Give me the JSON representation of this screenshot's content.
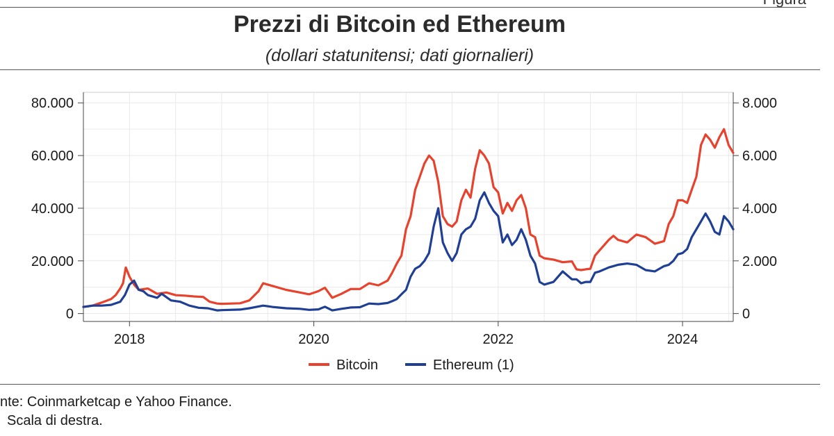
{
  "header": {
    "corner_tag": "Figura",
    "title": "Prezzi di Bitcoin ed Ethereum",
    "subtitle": "(dollari statunitensi; dati giornalieri)"
  },
  "footer": {
    "source": "nte: Coinmarketcap e Yahoo Finance.",
    "note": "Scala di destra."
  },
  "chart_data": {
    "type": "line",
    "title": "Prezzi di Bitcoin ed Ethereum",
    "subtitle": "(dollari statunitensi; dati giornalieri)",
    "x_unit": "year",
    "xlim": [
      2017.5,
      2024.55
    ],
    "x_ticks": [
      2018,
      2020,
      2022,
      2024
    ],
    "x_tick_labels": [
      "2018",
      "2020",
      "2022",
      "2024"
    ],
    "y_left": {
      "lim": [
        -3000,
        84000
      ],
      "ticks": [
        0,
        20000,
        40000,
        60000,
        80000
      ],
      "tick_labels": [
        "0",
        "20.000",
        "40.000",
        "60.000",
        "80.000"
      ]
    },
    "y_right": {
      "lim": [
        -300,
        8400
      ],
      "ticks": [
        0,
        2000,
        4000,
        6000,
        8000
      ],
      "tick_labels": [
        "0",
        "2.000",
        "4.000",
        "6.000",
        "8.000"
      ]
    },
    "grid": true,
    "legend_position": "bottom-center",
    "series": [
      {
        "name": "Bitcoin",
        "axis": "left",
        "color": "#e8412c",
        "x": [
          2017.5,
          2017.6,
          2017.7,
          2017.8,
          2017.85,
          2017.9,
          2017.93,
          2017.96,
          2018.0,
          2018.05,
          2018.1,
          2018.2,
          2018.3,
          2018.4,
          2018.5,
          2018.6,
          2018.7,
          2018.8,
          2018.87,
          2018.95,
          2019.0,
          2019.2,
          2019.3,
          2019.4,
          2019.45,
          2019.55,
          2019.7,
          2019.85,
          2019.95,
          2020.05,
          2020.12,
          2020.2,
          2020.3,
          2020.4,
          2020.5,
          2020.6,
          2020.7,
          2020.8,
          2020.85,
          2020.9,
          2020.95,
          2021.0,
          2021.05,
          2021.1,
          2021.15,
          2021.2,
          2021.25,
          2021.3,
          2021.35,
          2021.4,
          2021.45,
          2021.5,
          2021.55,
          2021.6,
          2021.65,
          2021.7,
          2021.75,
          2021.8,
          2021.85,
          2021.9,
          2021.95,
          2022.0,
          2022.05,
          2022.1,
          2022.15,
          2022.2,
          2022.25,
          2022.3,
          2022.35,
          2022.4,
          2022.45,
          2022.5,
          2022.6,
          2022.7,
          2022.8,
          2022.85,
          2022.9,
          2022.95,
          2023.0,
          2023.05,
          2023.1,
          2023.2,
          2023.25,
          2023.3,
          2023.4,
          2023.5,
          2023.6,
          2023.7,
          2023.8,
          2023.85,
          2023.9,
          2023.95,
          2024.0,
          2024.05,
          2024.1,
          2024.15,
          2024.2,
          2024.25,
          2024.3,
          2024.35,
          2024.4,
          2024.45,
          2024.5,
          2024.55
        ],
        "values": [
          2500,
          3000,
          4200,
          5500,
          7000,
          9500,
          11500,
          17500,
          14000,
          11000,
          9000,
          9500,
          7500,
          8000,
          7000,
          6800,
          6500,
          6300,
          4500,
          3800,
          3700,
          3900,
          5000,
          8500,
          11500,
          10500,
          9000,
          8000,
          7300,
          8500,
          9800,
          6000,
          7500,
          9300,
          9300,
          11500,
          10700,
          12500,
          15500,
          19000,
          22000,
          32000,
          37000,
          47000,
          52000,
          57000,
          60000,
          58000,
          50000,
          37000,
          34000,
          33000,
          35000,
          43000,
          47000,
          44000,
          55000,
          62000,
          60000,
          57000,
          48000,
          46000,
          38000,
          42000,
          39000,
          43000,
          45000,
          40000,
          30000,
          29000,
          22000,
          21000,
          20500,
          19500,
          19800,
          16800,
          16500,
          16800,
          17000,
          22000,
          24000,
          28000,
          29500,
          28000,
          27000,
          30000,
          29000,
          26500,
          27500,
          34000,
          37000,
          43000,
          43000,
          42000,
          47000,
          52000,
          64000,
          68000,
          66000,
          63000,
          67000,
          70000,
          64000,
          61000
        ]
      },
      {
        "name": "Ethereum (1)",
        "axis": "right",
        "color": "#1f3f95",
        "x": [
          2017.5,
          2017.6,
          2017.7,
          2017.8,
          2017.9,
          2017.95,
          2018.0,
          2018.05,
          2018.1,
          2018.15,
          2018.2,
          2018.3,
          2018.35,
          2018.45,
          2018.55,
          2018.65,
          2018.75,
          2018.85,
          2018.95,
          2019.0,
          2019.2,
          2019.3,
          2019.45,
          2019.55,
          2019.7,
          2019.85,
          2019.95,
          2020.05,
          2020.12,
          2020.2,
          2020.3,
          2020.4,
          2020.5,
          2020.6,
          2020.7,
          2020.8,
          2020.85,
          2020.9,
          2020.95,
          2021.0,
          2021.05,
          2021.1,
          2021.15,
          2021.2,
          2021.25,
          2021.3,
          2021.35,
          2021.4,
          2021.45,
          2021.5,
          2021.55,
          2021.6,
          2021.65,
          2021.7,
          2021.75,
          2021.8,
          2021.85,
          2021.9,
          2021.95,
          2022.0,
          2022.05,
          2022.1,
          2022.15,
          2022.2,
          2022.25,
          2022.3,
          2022.35,
          2022.4,
          2022.45,
          2022.5,
          2022.6,
          2022.7,
          2022.8,
          2022.85,
          2022.9,
          2022.95,
          2023.0,
          2023.05,
          2023.1,
          2023.2,
          2023.3,
          2023.4,
          2023.5,
          2023.6,
          2023.7,
          2023.8,
          2023.85,
          2023.9,
          2023.95,
          2024.0,
          2024.05,
          2024.1,
          2024.15,
          2024.2,
          2024.25,
          2024.3,
          2024.35,
          2024.4,
          2024.45,
          2024.5,
          2024.55
        ],
        "values": [
          250,
          300,
          300,
          330,
          450,
          700,
          1100,
          1250,
          900,
          850,
          700,
          600,
          750,
          500,
          450,
          300,
          220,
          200,
          120,
          130,
          150,
          200,
          300,
          250,
          200,
          180,
          140,
          160,
          260,
          120,
          180,
          230,
          240,
          380,
          360,
          400,
          470,
          550,
          730,
          900,
          1400,
          1700,
          1800,
          2000,
          2300,
          3300,
          4000,
          2700,
          2300,
          2000,
          2300,
          3000,
          3200,
          3300,
          3600,
          4300,
          4600,
          4200,
          3900,
          3700,
          2700,
          3000,
          2600,
          2800,
          3200,
          2800,
          2200,
          1900,
          1200,
          1100,
          1200,
          1600,
          1300,
          1300,
          1150,
          1200,
          1200,
          1550,
          1600,
          1750,
          1850,
          1900,
          1850,
          1650,
          1600,
          1800,
          1850,
          2000,
          2250,
          2300,
          2450,
          2900,
          3200,
          3500,
          3800,
          3500,
          3100,
          3000,
          3700,
          3500,
          3200
        ]
      }
    ]
  }
}
